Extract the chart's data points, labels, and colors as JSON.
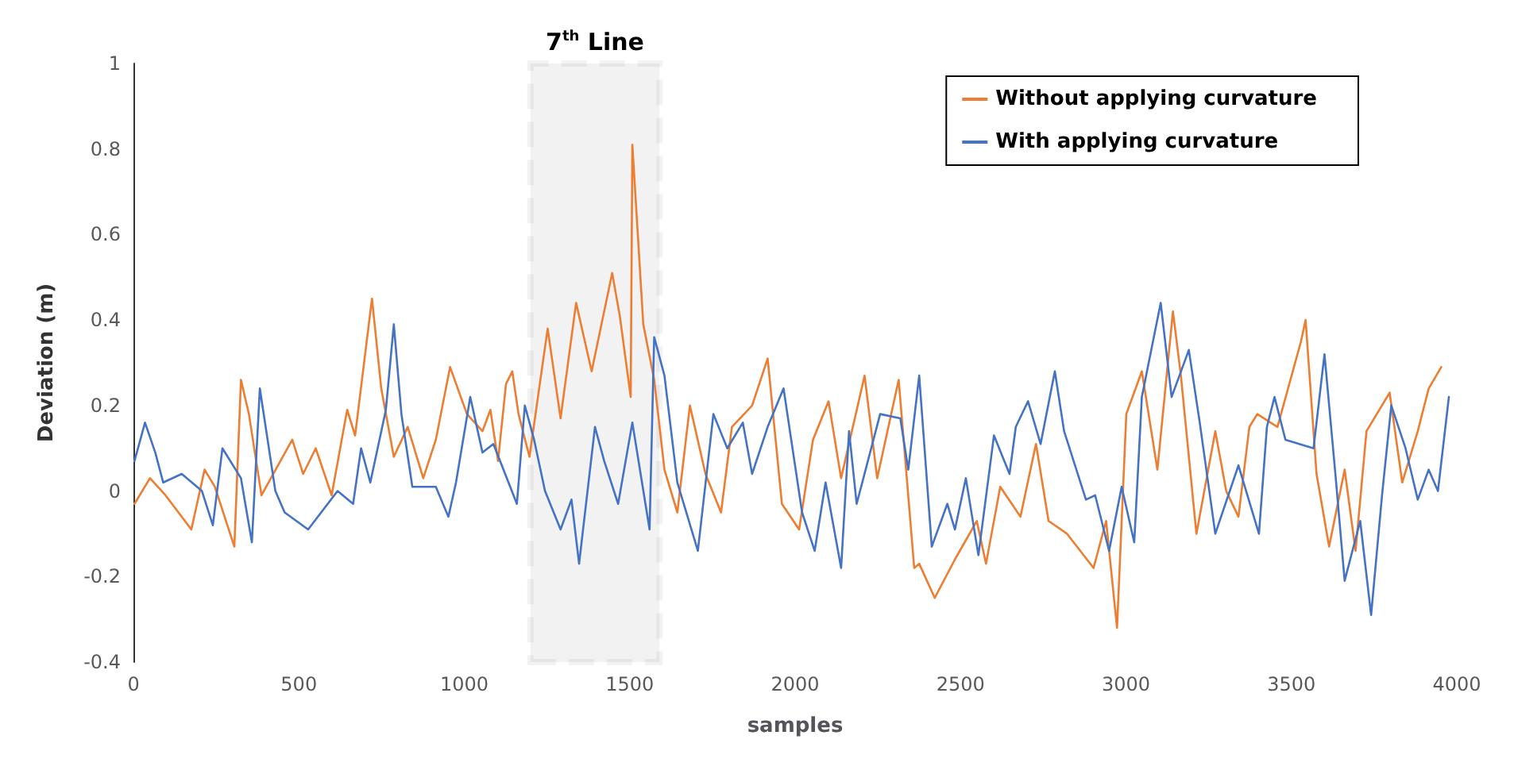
{
  "chart_data": {
    "type": "line",
    "xlabel": "samples",
    "ylabel": "Deviation (m)",
    "xlim": [
      0,
      4000
    ],
    "xticks": [
      0,
      500,
      1000,
      1500,
      2000,
      2500,
      3000,
      3500,
      4000
    ],
    "ylim": [
      -0.4,
      1
    ],
    "yticks": [
      -0.4,
      -0.2,
      0,
      0.2,
      0.4,
      0.6,
      0.8,
      1
    ],
    "grid": false,
    "legend": "top right",
    "bands": [
      {
        "axis": "x",
        "from": 1200,
        "to": 1590,
        "label": "7$^{th}$ Line",
        "color": "#000000"
      }
    ],
    "series": [
      {
        "name": "Without applying curvature",
        "color": "#ed7d31",
        "x": [
          3,
          50,
          97,
          175,
          215,
          246,
          305,
          325,
          349,
          387,
          480,
          513,
          551,
          599,
          646,
          670,
          721,
          749,
          787,
          829,
          876,
          914,
          957,
          1008,
          1055,
          1079,
          1102,
          1126,
          1145,
          1164,
          1197,
          1252,
          1291,
          1338,
          1385,
          1447,
          1470,
          1503,
          1508,
          1541,
          1574,
          1605,
          1644,
          1682,
          1729,
          1776,
          1809,
          1870,
          1917,
          1960,
          2012,
          2054,
          2101,
          2139,
          2210,
          2248,
          2313,
          2360,
          2375,
          2422,
          2483,
          2549,
          2577,
          2620,
          2681,
          2728,
          2766,
          2822,
          2902,
          2940,
          2973,
          3001,
          3048,
          3095,
          3142,
          3166,
          3213,
          3270,
          3303,
          3340,
          3373,
          3397,
          3458,
          3529,
          3543,
          3576,
          3614,
          3661,
          3694,
          3727,
          3797,
          3835,
          3882,
          3915,
          3953
        ],
        "values": [
          -0.03,
          0.03,
          -0.01,
          -0.09,
          0.05,
          0.01,
          -0.13,
          0.26,
          0.18,
          -0.01,
          0.12,
          0.04,
          0.1,
          -0.01,
          0.19,
          0.13,
          0.45,
          0.24,
          0.08,
          0.15,
          0.03,
          0.12,
          0.29,
          0.18,
          0.14,
          0.19,
          0.07,
          0.25,
          0.28,
          0.18,
          0.08,
          0.38,
          0.17,
          0.44,
          0.28,
          0.51,
          0.41,
          0.22,
          0.81,
          0.39,
          0.26,
          0.05,
          -0.05,
          0.2,
          0.04,
          -0.05,
          0.15,
          0.2,
          0.31,
          -0.03,
          -0.09,
          0.12,
          0.21,
          0.03,
          0.27,
          0.03,
          0.26,
          -0.18,
          -0.17,
          -0.25,
          -0.16,
          -0.07,
          -0.17,
          0.01,
          -0.06,
          0.11,
          -0.07,
          -0.1,
          -0.18,
          -0.07,
          -0.32,
          0.18,
          0.28,
          0.05,
          0.42,
          0.27,
          -0.1,
          0.14,
          0,
          -0.06,
          0.15,
          0.18,
          0.15,
          0.35,
          0.4,
          0.04,
          -0.13,
          0.05,
          -0.14,
          0.14,
          0.23,
          0.02,
          0.14,
          0.24,
          0.29
        ]
      },
      {
        "name": "With applying curvature",
        "color": "#4472c4",
        "x": [
          3,
          35,
          66,
          90,
          146,
          207,
          240,
          269,
          325,
          358,
          382,
          429,
          457,
          528,
          617,
          664,
          688,
          716,
          763,
          787,
          810,
          843,
          914,
          952,
          975,
          1018,
          1055,
          1088,
          1159,
          1183,
          1211,
          1244,
          1291,
          1324,
          1347,
          1395,
          1423,
          1465,
          1508,
          1560,
          1574,
          1605,
          1644,
          1706,
          1753,
          1795,
          1842,
          1870,
          1917,
          1965,
          2021,
          2059,
          2092,
          2139,
          2163,
          2186,
          2257,
          2318,
          2342,
          2375,
          2413,
          2460,
          2483,
          2516,
          2554,
          2601,
          2648,
          2667,
          2704,
          2742,
          2785,
          2813,
          2879,
          2907,
          2949,
          2987,
          3025,
          3048,
          3105,
          3138,
          3190,
          3223,
          3270,
          3340,
          3402,
          3426,
          3449,
          3482,
          3567,
          3600,
          3633,
          3661,
          3708,
          3741,
          3774,
          3802,
          3845,
          3882,
          3915,
          3943,
          3976
        ],
        "values": [
          0.07,
          0.16,
          0.09,
          0.02,
          0.04,
          0,
          -0.08,
          0.1,
          0.03,
          -0.12,
          0.24,
          0,
          -0.05,
          -0.09,
          0,
          -0.03,
          0.1,
          0.02,
          0.19,
          0.39,
          0.18,
          0.01,
          0.01,
          -0.06,
          0.02,
          0.22,
          0.09,
          0.11,
          -0.03,
          0.2,
          0.12,
          0,
          -0.09,
          -0.02,
          -0.17,
          0.15,
          0.07,
          -0.03,
          0.16,
          -0.09,
          0.36,
          0.27,
          0.02,
          -0.14,
          0.18,
          0.1,
          0.16,
          0.04,
          0.15,
          0.24,
          -0.05,
          -0.14,
          0.02,
          -0.18,
          0.14,
          -0.03,
          0.18,
          0.17,
          0.05,
          0.27,
          -0.13,
          -0.03,
          -0.09,
          0.03,
          -0.15,
          0.13,
          0.04,
          0.15,
          0.21,
          0.11,
          0.28,
          0.14,
          -0.02,
          -0.01,
          -0.14,
          0.01,
          -0.12,
          0.22,
          0.44,
          0.22,
          0.33,
          0.16,
          -0.1,
          0.06,
          -0.1,
          0.15,
          0.22,
          0.12,
          0.1,
          0.32,
          0.04,
          -0.21,
          -0.07,
          -0.29,
          -0.01,
          0.2,
          0.1,
          -0.02,
          0.05,
          0,
          0.22
        ]
      }
    ]
  }
}
